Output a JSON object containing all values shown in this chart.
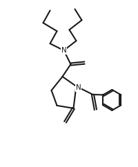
{
  "bg_color": "#ffffff",
  "line_color": "#1a1a1a",
  "line_width": 1.5,
  "figsize": [
    2.01,
    2.42
  ],
  "dpi": 100,
  "xlim": [
    0,
    10
  ],
  "ylim": [
    0,
    12
  ]
}
